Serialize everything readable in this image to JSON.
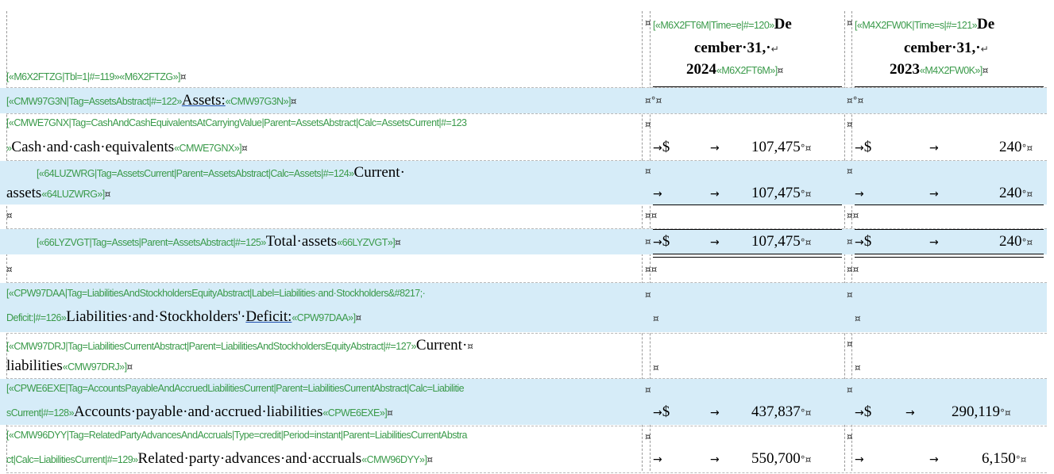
{
  "header": {
    "left_tag": "[«M6X2FTZG|Tbl=1|#=119»«M6X2FTZG»]",
    "col1": {
      "tag_open": "[«M6X2FT6M|Time=e|#=120»",
      "line1": "De",
      "line2": "cember·31,·",
      "line3": "2024",
      "tag_close": "«M6X2FT6M»]"
    },
    "col2": {
      "tag_open": "[«M4X2FW0K|Time=s|#=121»",
      "line1": "De",
      "line2": "cember·31,·",
      "line3": "2023",
      "tag_close": "«M4X2FW0K»]"
    }
  },
  "markers": {
    "cell_end": "¤",
    "para": "°",
    "arrow": "→",
    "dollar": "$",
    "line_break": "↵"
  },
  "rows": [
    {
      "tag_pre": "[«CMW97G3N|Tag=AssetsAbstract|#=122»",
      "caption": "Assets:",
      "tag_post": "«CMW97G3N»]",
      "v2024": "",
      "v2023": ""
    },
    {
      "tag_line1": "[«CMWE7GNX|Tag=CashAndCashEquivalentsAtCarryingValue|Parent=AssetsAbstract|Calc=AssetsCurrent|#=123",
      "tag_pre": "»",
      "caption": "Cash·and·cash·equivalents",
      "tag_post": "«CMWE7GNX»]",
      "v2024": "107,475",
      "v2023": "240"
    },
    {
      "tag_pre": "[«64LUZWRG|Tag=AssetsCurrent|Parent=AssetsAbstract|Calc=Assets|#=124»",
      "caption_line1": "Current·",
      "caption_line2": "assets",
      "tag_post": "«64LUZWRG»]",
      "v2024": "107,475",
      "v2023": "240"
    },
    {
      "tag_pre": "[«66LYZVGT|Tag=Assets|Parent=AssetsAbstract|#=125»",
      "caption": "Total·assets",
      "tag_post": "«66LYZVGT»]",
      "v2024": "107,475",
      "v2023": "240"
    },
    {
      "tag_line1": "[«CPW97DAA|Tag=LiabilitiesAndStockholdersEquityAbstract|Label=Liabilities·and·Stockholders&#8217;·",
      "tag_pre": "Deficit:|#=126»",
      "caption_a": "Liabilities·and·Stockholders'·",
      "caption_b": "Deficit:",
      "tag_post": "«CPW97DAA»]"
    },
    {
      "tag_pre": "[«CMW97DRJ|Tag=LiabilitiesCurrentAbstract|Parent=LiabilitiesAndStockholdersEquityAbstract|#=127»",
      "caption_line1": "Current·",
      "caption_line2": "liabilities",
      "tag_post": "«CMW97DRJ»]"
    },
    {
      "tag_line1": "[«CPWE6EXE|Tag=AccountsPayableAndAccruedLiabilitiesCurrent|Parent=LiabilitiesCurrentAbstract|Calc=Liabilitie",
      "tag_pre": "sCurrent|#=128»",
      "caption": "Accounts·payable·and·accrued·liabilities",
      "tag_post": "«CPWE6EXE»]",
      "v2024": "437,837",
      "v2023": "290,119"
    },
    {
      "tag_line1": "[«CMW96DYY|Tag=RelatedPartyAdvancesAndAccruals|Type=credit|Period=instant|Parent=LiabilitiesCurrentAbstra",
      "tag_pre": "ct|Calc=LiabilitiesCurrent|#=129»",
      "caption": "Related·party·advances·and·accruals",
      "tag_post": "«CMW96DYY»]",
      "v2024": "550,700",
      "v2023": "6,150"
    }
  ]
}
